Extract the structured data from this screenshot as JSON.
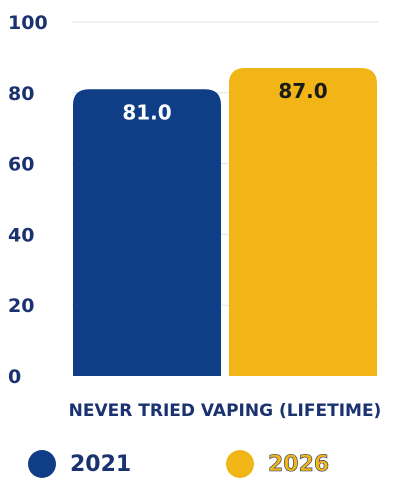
{
  "chart_data": {
    "type": "bar",
    "categories": [
      "NEVER TRIED VAPING (LIFETIME)"
    ],
    "series": [
      {
        "name": "2021",
        "values": [
          81.0
        ],
        "labels": [
          "81.0"
        ],
        "color": "#0f3d86",
        "label_color": "#ffffff"
      },
      {
        "name": "2026",
        "values": [
          87.0
        ],
        "labels": [
          "87.0"
        ],
        "color": "#f1b517",
        "label_color": "#1a1a1a"
      }
    ],
    "ylim": [
      0,
      100
    ],
    "yticks": [
      0,
      20,
      40,
      60,
      80,
      100
    ],
    "ytick_labels": [
      "0",
      "20",
      "40",
      "60",
      "80",
      "100"
    ],
    "grid": true,
    "legend_position": "bottom"
  }
}
